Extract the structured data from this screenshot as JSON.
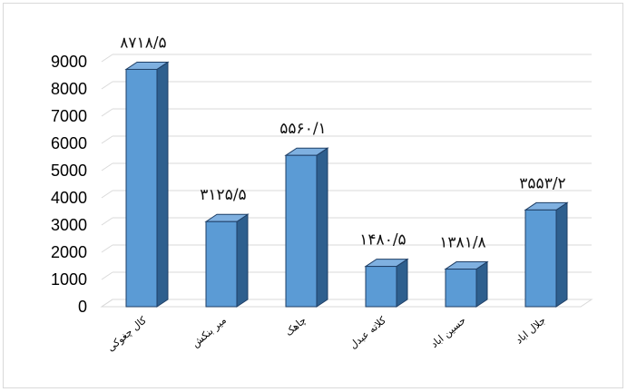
{
  "chart_data": {
    "type": "bar",
    "style": "3d-column",
    "categories": [
      "کال چغوکی",
      "میر بنکش",
      "چاهک",
      "کلاته عبدل",
      "حسین اباد",
      "جلال اباد"
    ],
    "values": [
      8718.5,
      3125.5,
      5560.1,
      1480.5,
      1381.8,
      3553.2
    ],
    "data_labels": [
      "۸۷۱۸/۵",
      "۳۱۲۵/۵",
      "۵۵۶۰/۱",
      "۱۴۸۰/۵",
      "۱۳۸۱/۸",
      "۳۵۵۳/۲"
    ],
    "y_ticks": [
      "0",
      "1000",
      "2000",
      "3000",
      "4000",
      "5000",
      "6000",
      "7000",
      "8000",
      "9000"
    ],
    "ylim": [
      0,
      9000
    ],
    "grid": true,
    "title": "",
    "xlabel": "",
    "ylabel": "",
    "colors": {
      "bar_front": "#5b9bd5",
      "bar_side": "#2e5f8e",
      "bar_top": "#7fb0e0",
      "bar_outline": "#1f3f66",
      "grid": "#d9d9d9"
    }
  }
}
